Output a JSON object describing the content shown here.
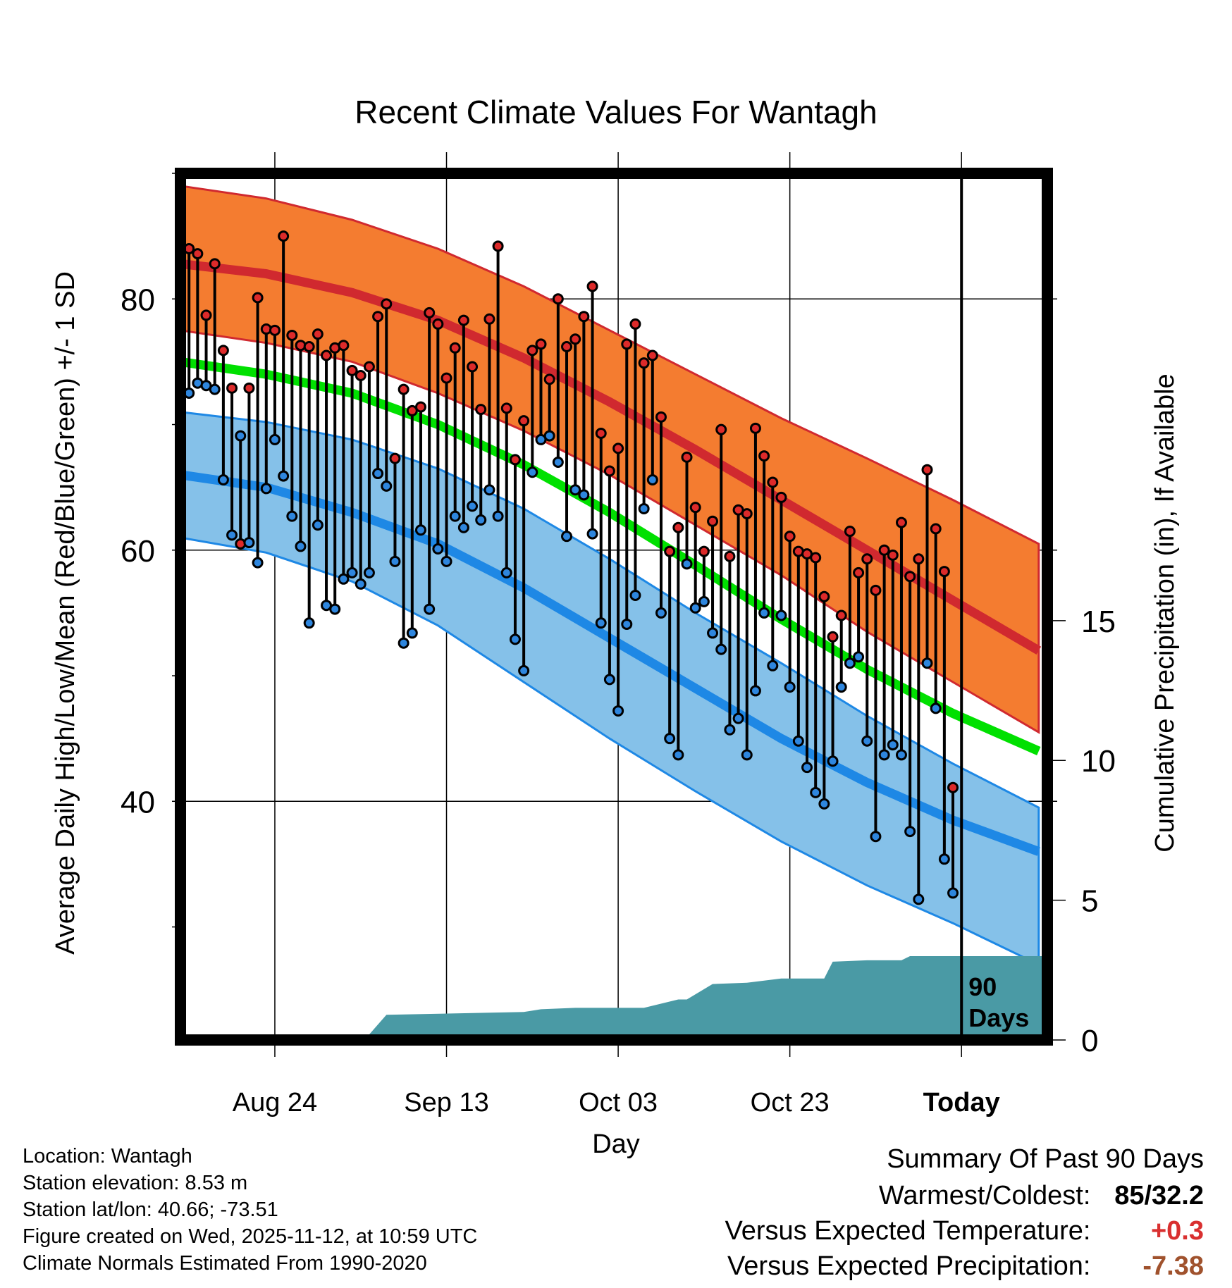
{
  "chart_data": {
    "type": "line",
    "title": "Recent Climate Values For Wantagh",
    "xlabel": "Day",
    "ylabel": "Average Daily High/Low/Mean (Red/Blue/Green) +/- 1 SD",
    "y2label": "Cumulative Precipitation (in), If Available",
    "ylim": [
      21,
      90
    ],
    "y2lim": [
      0,
      31
    ],
    "y_ticks": [
      "40",
      "60",
      "80"
    ],
    "y2_ticks": [
      "0",
      "5",
      "10",
      "15"
    ],
    "x_ticks": [
      {
        "label": "Aug 24",
        "day": 11
      },
      {
        "label": "Sep 13",
        "day": 31
      },
      {
        "label": "Oct 03",
        "day": 51
      },
      {
        "label": "Oct 23",
        "day": 71
      },
      {
        "label": "Today",
        "day": 91
      }
    ],
    "x_range": [
      0,
      101
    ],
    "today_day": 91,
    "today_label": [
      "90",
      "Days"
    ],
    "normals": {
      "days": [
        0,
        10,
        20,
        30,
        40,
        50,
        60,
        70,
        80,
        90,
        100
      ],
      "high_upper": [
        89.0,
        88.0,
        86.3,
        84.0,
        81.0,
        77.5,
        74.0,
        70.5,
        67.3,
        64.0,
        60.5
      ],
      "high_mean": [
        82.8,
        82.0,
        80.5,
        78.3,
        75.3,
        71.8,
        68.0,
        64.0,
        60.0,
        56.0,
        52.0
      ],
      "high_lower": [
        77.5,
        76.5,
        75.0,
        72.5,
        69.5,
        66.0,
        62.0,
        58.0,
        53.5,
        49.5,
        45.5
      ],
      "mean": [
        75.0,
        74.0,
        72.5,
        70.0,
        66.8,
        63.0,
        58.8,
        54.5,
        50.5,
        47.0,
        44.0
      ],
      "low_upper": [
        71.0,
        70.2,
        68.8,
        66.5,
        63.3,
        59.3,
        55.0,
        51.0,
        46.8,
        43.0,
        39.5
      ],
      "low_mean": [
        66.0,
        65.0,
        63.0,
        60.5,
        57.0,
        53.0,
        49.0,
        45.0,
        41.5,
        38.5,
        36.0
      ],
      "low_lower": [
        61.0,
        59.8,
        57.5,
        54.0,
        49.5,
        45.0,
        40.8,
        36.8,
        33.3,
        30.3,
        27.0
      ]
    },
    "series": [
      {
        "name": "Daily High",
        "color": "#dd2a2a",
        "values": [
          84.0,
          83.6,
          78.7,
          82.8,
          75.9,
          72.9,
          60.5,
          72.9,
          80.1,
          77.6,
          77.5,
          85.0,
          77.1,
          76.3,
          76.2,
          77.2,
          75.5,
          76.1,
          76.3,
          74.3,
          73.9,
          74.6,
          78.6,
          79.6,
          67.3,
          72.8,
          71.1,
          71.4,
          78.9,
          78.0,
          73.7,
          76.1,
          78.3,
          74.6,
          71.2,
          78.4,
          84.2,
          71.3,
          67.2,
          70.3,
          75.9,
          76.4,
          73.6,
          80.0,
          76.2,
          76.8,
          78.6,
          81.0,
          69.3,
          66.3,
          68.1,
          76.4,
          78.0,
          74.9,
          75.5,
          70.6,
          59.9,
          61.8,
          67.4,
          63.4,
          59.9,
          62.3,
          69.6,
          59.5,
          63.2,
          62.9,
          69.7,
          67.5,
          65.4,
          64.2,
          61.1,
          59.9,
          59.7,
          59.4,
          56.3,
          53.1,
          54.8,
          61.5,
          58.2,
          59.3,
          56.8,
          60.0,
          59.6,
          62.2,
          57.9,
          59.3,
          66.4,
          61.7,
          58.3,
          41.1
        ]
      },
      {
        "name": "Daily Low",
        "color": "#2e86de",
        "values": [
          72.5,
          73.3,
          73.1,
          72.8,
          65.6,
          61.2,
          69.1,
          60.6,
          59.0,
          64.9,
          68.8,
          65.9,
          62.7,
          60.3,
          54.2,
          62.0,
          55.6,
          55.3,
          57.7,
          58.2,
          57.3,
          58.2,
          66.1,
          65.1,
          59.1,
          52.6,
          53.4,
          61.6,
          55.3,
          60.1,
          59.1,
          62.7,
          61.8,
          63.5,
          62.4,
          64.8,
          62.7,
          58.2,
          52.9,
          50.4,
          66.2,
          68.8,
          69.1,
          67.0,
          61.1,
          64.8,
          64.4,
          61.3,
          54.2,
          49.7,
          47.2,
          54.1,
          56.4,
          63.3,
          65.6,
          55.0,
          45.0,
          43.7,
          58.9,
          55.4,
          55.9,
          53.4,
          52.1,
          45.7,
          46.6,
          43.7,
          48.8,
          55.0,
          50.8,
          54.8,
          49.1,
          44.8,
          42.7,
          40.7,
          39.8,
          43.2,
          49.1,
          51.0,
          51.5,
          44.8,
          37.2,
          43.7,
          44.5,
          43.7,
          37.6,
          32.2,
          51.0,
          47.4,
          35.4,
          32.7
        ]
      }
    ],
    "precipitation": {
      "days": [
        0,
        6,
        12,
        18,
        22,
        24,
        40,
        42,
        46,
        50,
        54,
        58,
        59,
        62,
        66,
        70,
        75,
        76,
        80,
        84,
        85,
        88,
        101
      ],
      "inches": [
        0,
        0.05,
        0.08,
        0.15,
        0.2,
        0.9,
        1.0,
        1.1,
        1.15,
        1.15,
        1.15,
        1.45,
        1.45,
        2.0,
        2.05,
        2.2,
        2.2,
        2.8,
        2.85,
        2.85,
        3.0,
        3.0,
        3.0
      ]
    },
    "colors": {
      "high_band": "#f47c30",
      "high_mean": "#d0292f",
      "low_band": "#85c1e9",
      "low_mean": "#1e88e5",
      "mean": "#00e000",
      "precip": "#4a9aa5",
      "dot_high": "#dd2a2a",
      "dot_low": "#2e86de"
    }
  },
  "info": {
    "location": "Location: Wantagh",
    "elevation": "Station elevation: 8.53 m",
    "latlon": "Station lat/lon: 40.66; -73.51",
    "created": "Figure created on Wed, 2025-11-12, at 10:59 UTC",
    "normals": "Climate Normals Estimated From 1990-2020"
  },
  "summary": {
    "title": "Summary Of Past 90 Days",
    "warm_cold_label": "Warmest/Coldest:",
    "warm_cold_value": "85/32.2",
    "temp_label": "Versus Expected Temperature:",
    "temp_value": "+0.3",
    "temp_color": "#d93030",
    "precip_label": "Versus Expected Precipitation:",
    "precip_value": "-7.38",
    "precip_color": "#a0522d"
  }
}
